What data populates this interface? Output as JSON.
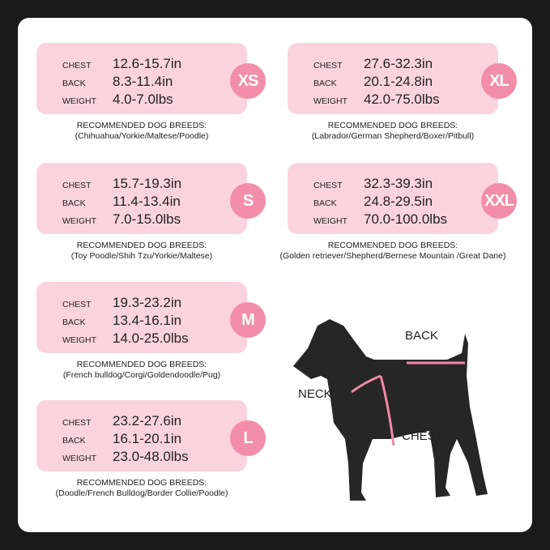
{
  "labels": {
    "chest": "CHEST",
    "back": "BACK",
    "weight": "WEIGHT",
    "recommended": "RECOMMENDED DOG BREEDS:"
  },
  "sizes": [
    {
      "size": "XS",
      "chest": "12.6-15.7in",
      "back": "8.3-11.4in",
      "weight": "4.0-7.0lbs",
      "breeds": "(Chihuahua/Yorkie/Maltese/Poodle)"
    },
    {
      "size": "S",
      "chest": "15.7-19.3in",
      "back": "11.4-13.4in",
      "weight": "7.0-15.0lbs",
      "breeds": "(Toy Poodle/Shih Tzu/Yorkie/Maltese)"
    },
    {
      "size": "M",
      "chest": "19.3-23.2in",
      "back": "13.4-16.1in",
      "weight": "14.0-25.0lbs",
      "breeds": "(French bulldog/Corgi/Goldendoodle/Pug)"
    },
    {
      "size": "L",
      "chest": "23.2-27.6in",
      "back": "16.1-20.1in",
      "weight": "23.0-48.0lbs",
      "breeds": "(Doodle/French Bulldog/Border Collie/Poodle)"
    },
    {
      "size": "XL",
      "chest": "27.6-32.3in",
      "back": "20.1-24.8in",
      "weight": "42.0-75.0lbs",
      "breeds": "(Labrador/German Shepherd/Boxer/Pitbull)"
    },
    {
      "size": "XXL",
      "chest": "32.3-39.3in",
      "back": "24.8-29.5in",
      "weight": "70.0-100.0lbs",
      "breeds": "(Golden retriever/Shepherd/Bernese Mountain /Great Dane)"
    }
  ],
  "diagram": {
    "back": "BACK",
    "neck": "NECK",
    "chest": "CHEST"
  },
  "colors": {
    "box": "#fbd3df",
    "badge": "#f28daa",
    "strap": "#f08aa8"
  }
}
